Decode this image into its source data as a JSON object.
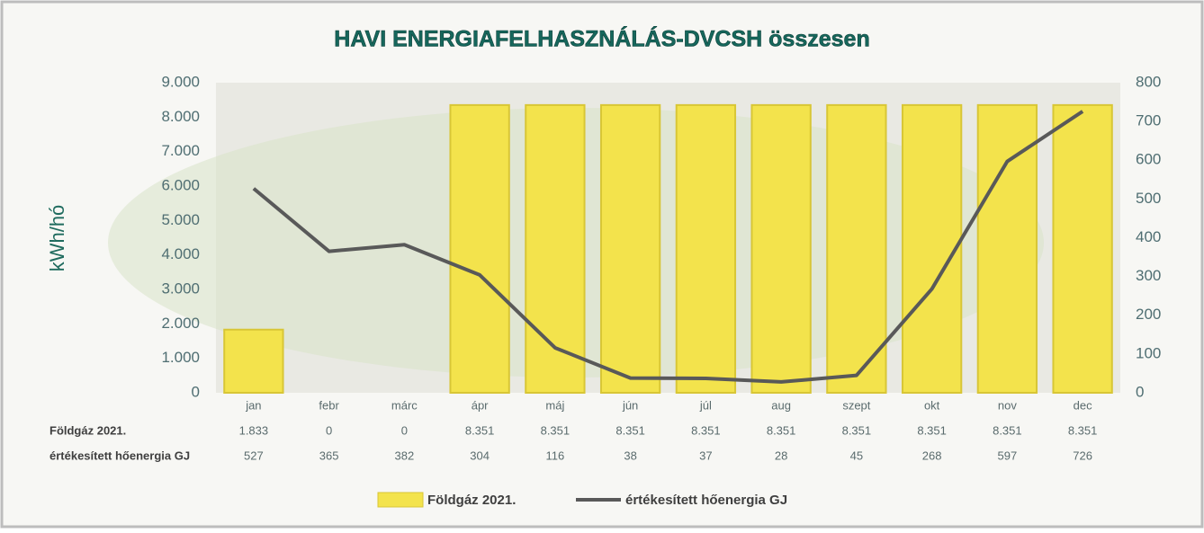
{
  "chart_data": {
    "type": "bar",
    "title": "HAVI ENERGIAFELHASZNÁLÁS-DVCSH összesen",
    "y_label": "kWh/hó",
    "categories": [
      "jan",
      "febr",
      "márc",
      "ápr",
      "máj",
      "jún",
      "júl",
      "aug",
      "szept",
      "okt",
      "nov",
      "dec"
    ],
    "series": [
      {
        "name": "Földgáz 2021.",
        "type": "bar",
        "color": "#f3e34c",
        "values": [
          1833,
          0,
          0,
          8351,
          8351,
          8351,
          8351,
          8351,
          8351,
          8351,
          8351,
          8351
        ],
        "value_labels": [
          "1.833",
          "0",
          "0",
          "8.351",
          "8.351",
          "8.351",
          "8.351",
          "8.351",
          "8.351",
          "8.351",
          "8.351",
          "8.351"
        ]
      },
      {
        "name": "értékesített hőenergia GJ",
        "type": "line",
        "axis": "y2",
        "color": "#595959",
        "values": [
          527,
          365,
          382,
          304,
          116,
          38,
          37,
          28,
          45,
          268,
          597,
          726
        ]
      }
    ],
    "ylim": [
      0,
      9000
    ],
    "yticks": [
      0,
      {
        "value": 1000,
        "label": "1.000"
      },
      {
        "value": 2000,
        "label": "2.000"
      },
      {
        "value": 3000,
        "label": "3.000"
      },
      {
        "value": 4000,
        "label": "4.000"
      },
      {
        "value": 5000,
        "label": "5.000"
      },
      {
        "value": 6000,
        "label": "6.000"
      },
      {
        "value": 7000,
        "label": "7.000"
      },
      {
        "value": 8000,
        "label": "8.000"
      },
      {
        "value": 9000,
        "label": "9.000"
      }
    ],
    "y2lim": [
      0,
      800
    ],
    "y2ticks": [
      0,
      100,
      200,
      300,
      400,
      500,
      600,
      700,
      800
    ]
  }
}
